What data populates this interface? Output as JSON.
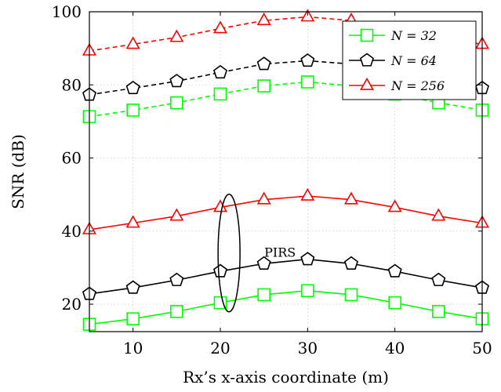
{
  "chart_data": {
    "type": "line",
    "xlabel": "Rx’s x-axis coordinate (m)",
    "ylabel": "SNR (dB)",
    "xlim": [
      5,
      50
    ],
    "ylim": [
      12.5,
      100
    ],
    "xticks": [
      10,
      20,
      30,
      40,
      50
    ],
    "yticks": [
      20,
      40,
      60,
      80,
      100
    ],
    "grid": true,
    "legend_position": "top-right",
    "x": [
      5,
      10,
      15,
      20,
      25,
      30,
      35,
      40,
      45,
      50
    ],
    "series": [
      {
        "name": "N = 32",
        "group": "upper",
        "line": "dashed",
        "marker": "square",
        "color": "#00ff00",
        "values": [
          71.3,
          73.1,
          75.1,
          77.5,
          79.7,
          80.8,
          79.7,
          77.5,
          75.1,
          73.1
        ]
      },
      {
        "name": "N = 64",
        "group": "upper",
        "line": "dashed",
        "marker": "pentagon",
        "color": "#000000",
        "values": [
          77.3,
          79.1,
          81.0,
          83.4,
          85.7,
          86.6,
          85.7,
          83.4,
          81.0,
          79.1
        ]
      },
      {
        "name": "N = 256",
        "group": "upper",
        "line": "dashed",
        "marker": "triangle",
        "color": "#ff0000",
        "values": [
          89.3,
          91.1,
          93.0,
          95.4,
          97.6,
          98.6,
          97.6,
          95.4,
          93.0,
          91.1
        ]
      },
      {
        "name": "N = 32",
        "group": "PIRS",
        "line": "solid",
        "marker": "square",
        "color": "#00ff00",
        "values": [
          14.5,
          16.0,
          18.0,
          20.4,
          22.6,
          23.7,
          22.6,
          20.4,
          18.0,
          16.0
        ]
      },
      {
        "name": "N = 64",
        "group": "PIRS",
        "line": "solid",
        "marker": "pentagon",
        "color": "#000000",
        "values": [
          22.8,
          24.5,
          26.6,
          29.0,
          31.1,
          32.3,
          31.1,
          29.0,
          26.6,
          24.5
        ]
      },
      {
        "name": "N = 256",
        "group": "PIRS",
        "line": "solid",
        "marker": "triangle",
        "color": "#ff0000",
        "values": [
          40.4,
          42.2,
          44.1,
          46.5,
          48.6,
          49.6,
          48.6,
          46.5,
          44.1,
          42.2
        ]
      }
    ],
    "legend": [
      {
        "label": "N = 32",
        "marker": "square",
        "color": "#00ff00"
      },
      {
        "label": "N = 64",
        "marker": "pentagon",
        "color": "#000000"
      },
      {
        "label": "N = 256",
        "marker": "triangle",
        "color": "#ff0000"
      }
    ],
    "annotations": [
      {
        "text": "PIRS",
        "target_x": 21,
        "target_y": 34
      }
    ]
  }
}
